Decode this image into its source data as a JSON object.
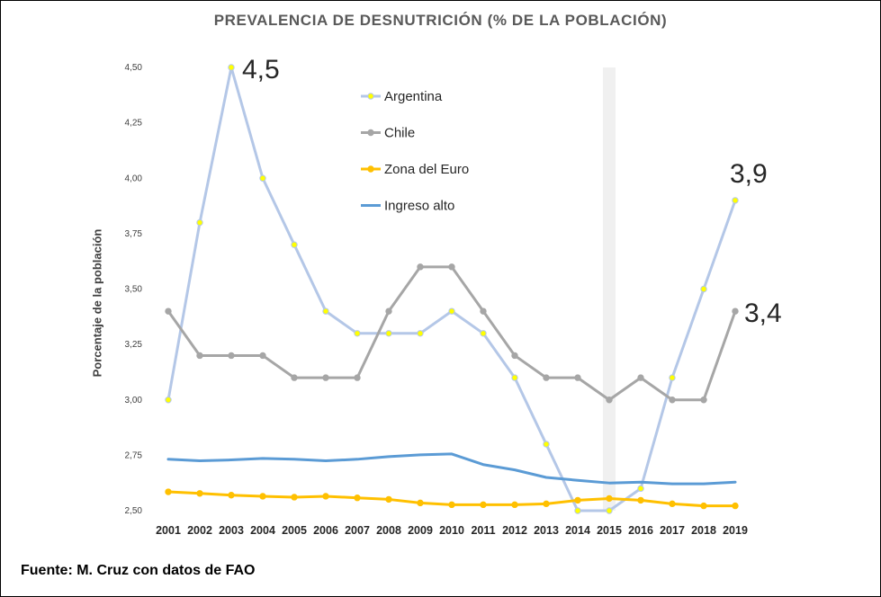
{
  "chart_data": {
    "type": "line",
    "title": "PREVALENCIA  DE DESNUTRICIÓN  (% DE LA POBLACIÓN)",
    "xlabel": "",
    "ylabel": "Porcentaje de la población",
    "x": [
      "2001",
      "2002",
      "2003",
      "2004",
      "2005",
      "2006",
      "2007",
      "2008",
      "2009",
      "2010",
      "2011",
      "2012",
      "2013",
      "2014",
      "2015",
      "2016",
      "2017",
      "2018",
      "2019"
    ],
    "yticks": [
      "2,50",
      "2,75",
      "3,00",
      "3,25",
      "3,50",
      "3,75",
      "4,00",
      "4,25",
      "4,50"
    ],
    "ylim": [
      2.5,
      4.5
    ],
    "grid": false,
    "highlight_year": "2015",
    "legend_position": "top-center",
    "series": [
      {
        "name": "Argentina",
        "color": "#b4c7e7",
        "marker_color": "#ffff00",
        "markers": true,
        "values": [
          3.0,
          3.8,
          4.5,
          4.0,
          3.7,
          3.4,
          3.3,
          3.3,
          3.3,
          3.4,
          3.3,
          3.1,
          2.8,
          2.5,
          2.5,
          2.6,
          3.1,
          3.5,
          3.9
        ]
      },
      {
        "name": "Chile",
        "color": "#a6a6a6",
        "marker_color": "#a6a6a6",
        "markers": true,
        "values": [
          3.4,
          3.2,
          3.2,
          3.2,
          3.1,
          3.1,
          3.1,
          3.4,
          3.6,
          3.6,
          3.4,
          3.2,
          3.1,
          3.1,
          3.0,
          3.1,
          3.0,
          3.0,
          3.4
        ]
      },
      {
        "name": "Zona del Euro",
        "color": "#ffc000",
        "marker_color": "#ffc000",
        "markers": true,
        "values": [
          2.585,
          2.578,
          2.57,
          2.565,
          2.561,
          2.565,
          2.558,
          2.551,
          2.535,
          2.527,
          2.527,
          2.527,
          2.531,
          2.547,
          2.555,
          2.547,
          2.531,
          2.522,
          2.522
        ]
      },
      {
        "name": "Ingreso alto",
        "color": "#5b9bd5",
        "marker_color": "#5b9bd5",
        "markers": false,
        "values": [
          2.732,
          2.725,
          2.729,
          2.736,
          2.732,
          2.725,
          2.732,
          2.744,
          2.752,
          2.756,
          2.708,
          2.684,
          2.65,
          2.637,
          2.625,
          2.629,
          2.621,
          2.621,
          2.629
        ]
      }
    ],
    "annotations": [
      {
        "text": "4,5",
        "series": "Argentina",
        "x": "2003"
      },
      {
        "text": "3,9",
        "series": "Argentina",
        "x": "2019"
      },
      {
        "text": "3,4",
        "series": "Chile",
        "x": "2019"
      }
    ]
  },
  "source_note": "Fuente: M. Cruz con datos de FAO"
}
